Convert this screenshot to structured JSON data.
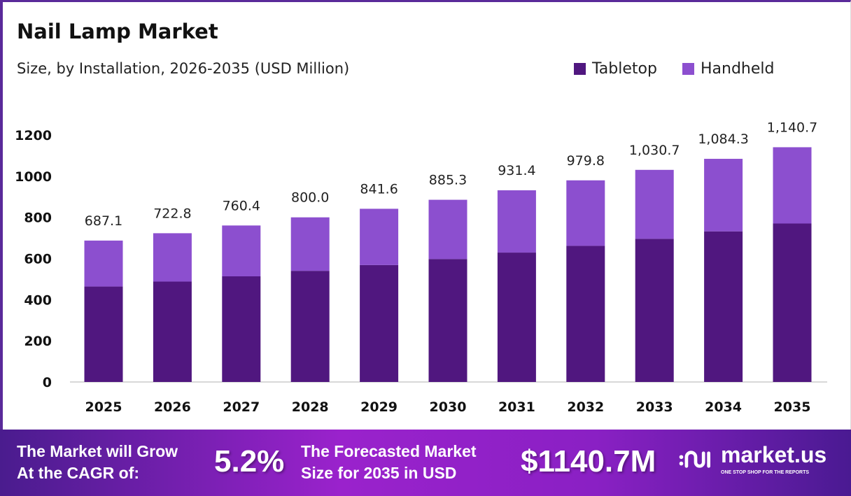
{
  "chart_data": {
    "type": "bar",
    "stacked": true,
    "title": "Nail Lamp Market",
    "subtitle": "Size, by Installation, 2026-2035 (USD Million)",
    "categories": [
      "2025",
      "2026",
      "2027",
      "2028",
      "2029",
      "2030",
      "2031",
      "2032",
      "2033",
      "2034",
      "2035"
    ],
    "series": [
      {
        "name": "Tabletop",
        "color": "#50177f",
        "values": [
          463.8,
          487.9,
          513.3,
          540.0,
          568.1,
          597.6,
          628.7,
          661.4,
          695.7,
          731.9,
          770.0
        ]
      },
      {
        "name": "Handheld",
        "color": "#8c4fcf",
        "values": [
          223.3,
          234.9,
          247.1,
          260.0,
          273.5,
          287.7,
          302.7,
          318.4,
          335.0,
          352.4,
          370.7
        ]
      }
    ],
    "totals": [
      "687.1",
      "722.8",
      "760.4",
      "800.0",
      "841.6",
      "885.3",
      "931.4",
      "979.8",
      "1,030.7",
      "1,084.3",
      "1,140.7"
    ],
    "yticks": [
      "0",
      "200",
      "400",
      "600",
      "800",
      "1000",
      "1200"
    ],
    "ylim": [
      0,
      1200
    ],
    "grid": false,
    "legend_position": "top-right",
    "xlabel": "",
    "ylabel": ""
  },
  "footer": {
    "cagr_label_line1": "The Market will Grow",
    "cagr_label_line2": "At the CAGR of:",
    "cagr_value": "5.2%",
    "forecast_label_line1": "The Forecasted Market",
    "forecast_label_line2": "Size for 2035 in USD",
    "forecast_value": "$1140.7M",
    "brand_name": "market.us",
    "brand_tagline": "ONE STOP SHOP FOR THE REPORTS"
  }
}
